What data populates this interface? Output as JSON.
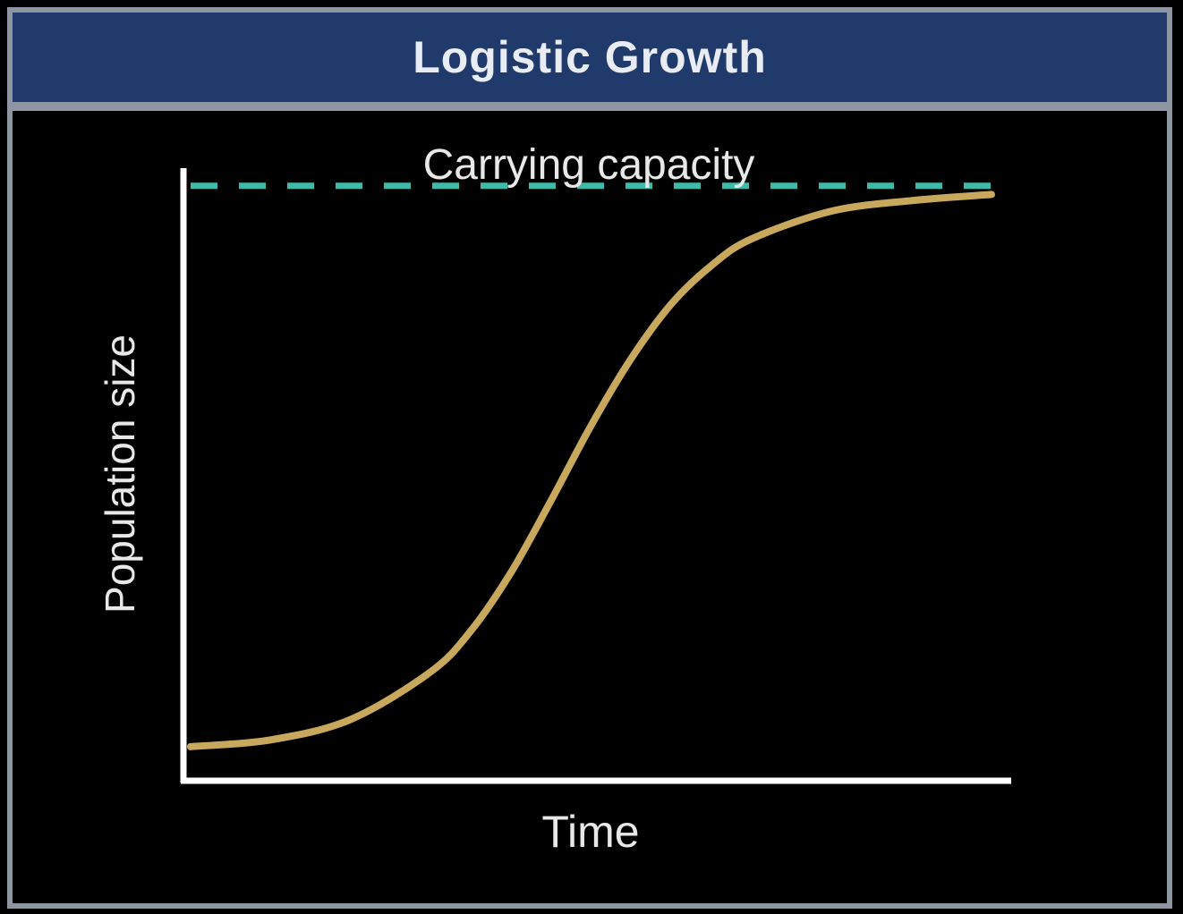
{
  "chart_data": {
    "type": "line",
    "title": "Logistic Growth",
    "xlabel": "Time",
    "ylabel": "Population size",
    "xlim": [
      0,
      10
    ],
    "ylim": [
      0,
      100
    ],
    "grid": false,
    "annotations": [
      {
        "text": "Carrying capacity",
        "y": 96
      }
    ],
    "reference_lines": [
      {
        "name": "Carrying capacity",
        "y": 96,
        "style": "dashed",
        "color": "#3fb9a8"
      }
    ],
    "series": [
      {
        "color": "#c8a85c",
        "x": [
          0,
          1,
          2,
          3,
          3.5,
          4,
          4.5,
          5,
          5.5,
          6,
          6.5,
          7,
          8,
          9,
          10
        ],
        "y": [
          5.5,
          6.6,
          9.9,
          17.6,
          24.2,
          33.6,
          45.2,
          57.3,
          68.1,
          76.9,
          83.1,
          87.4,
          91.9,
          93.6,
          94.6
        ]
      }
    ]
  }
}
